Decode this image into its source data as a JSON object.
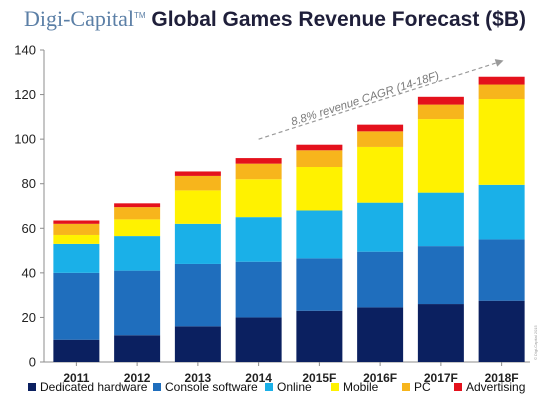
{
  "header": {
    "brand": "Digi-Capital",
    "trademark": "TM",
    "title_rest": "Global Games Revenue Forecast ($B)"
  },
  "chart_data": {
    "type": "bar",
    "stacked": true,
    "title": "Global Games Revenue Forecast ($B)",
    "categories": [
      "2011",
      "2012",
      "2013",
      "2014",
      "2015F",
      "2016F",
      "2017F",
      "2018F"
    ],
    "ylim": [
      0,
      140
    ],
    "yticks": [
      0,
      20,
      40,
      60,
      80,
      100,
      120,
      140
    ],
    "grid": false,
    "legend_position": "bottom",
    "series": [
      {
        "name": "Dedicated hardware",
        "color": "#0b2060",
        "values": [
          10,
          12,
          16,
          20,
          23,
          24.5,
          26,
          27.5
        ]
      },
      {
        "name": "Console software",
        "color": "#1f6ebd",
        "values": [
          30,
          29,
          28,
          25,
          23.5,
          25,
          26,
          27.5
        ]
      },
      {
        "name": "Online",
        "color": "#1ab0e8",
        "values": [
          13,
          15.5,
          18,
          20,
          21.5,
          22,
          24,
          24.5
        ]
      },
      {
        "name": "Mobile",
        "color": "#fff200",
        "values": [
          4,
          7.5,
          15,
          17,
          19.5,
          25,
          33,
          38.5
        ]
      },
      {
        "name": "PC",
        "color": "#f7b51c",
        "values": [
          5,
          5.5,
          6.5,
          7,
          7.5,
          7,
          6.5,
          6.5
        ]
      },
      {
        "name": "Advertising",
        "color": "#e4111c",
        "values": [
          1.5,
          1.7,
          2,
          2.5,
          2.5,
          3,
          3.5,
          3.5
        ]
      }
    ],
    "annotation": {
      "text": "8.8% revenue CAGR (14-18F)",
      "from_category": "2014",
      "to_category": "2018F",
      "from_value": 100,
      "to_value": 135
    }
  },
  "copyright": "© Digi-Capital 2015"
}
